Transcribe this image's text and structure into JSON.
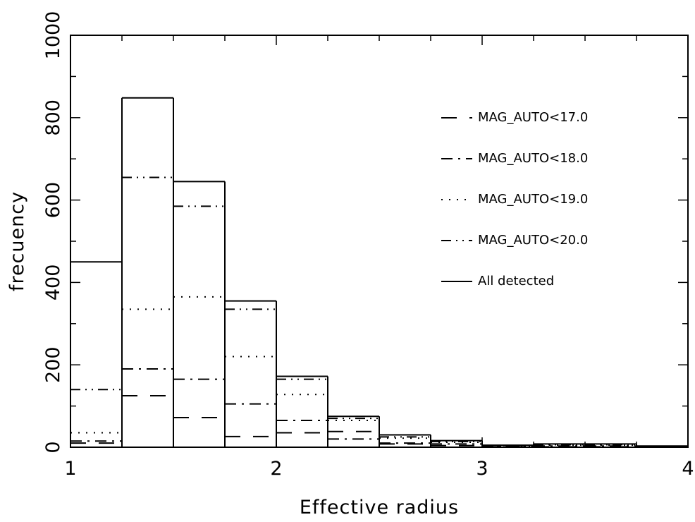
{
  "chart_data": {
    "type": "bar",
    "title": "",
    "xlabel": "Effective radius",
    "ylabel": "frecuency",
    "xlim": [
      1,
      4
    ],
    "ylim": [
      0,
      1000
    ],
    "x_ticks": [
      "1",
      "2",
      "3",
      "4"
    ],
    "y_ticks": [
      "0",
      "200",
      "400",
      "600",
      "800",
      "1000"
    ],
    "bin_edges": [
      1.0,
      1.25,
      1.5,
      1.75,
      2.0,
      2.25,
      2.5,
      2.75,
      3.0,
      3.25,
      3.5,
      3.75,
      4.0
    ],
    "legend_position": "top-right",
    "series": [
      {
        "name": "MAG_AUTO<17.0",
        "style": "long-dash",
        "values": [
          10,
          125,
          72,
          26,
          35,
          38,
          8,
          4,
          1,
          1,
          1,
          0
        ]
      },
      {
        "name": "MAG_AUTO<18.0",
        "style": "dash-dot",
        "values": [
          15,
          190,
          165,
          105,
          65,
          20,
          10,
          8,
          2,
          3,
          3,
          1
        ]
      },
      {
        "name": "MAG_AUTO<19.0",
        "style": "dotted",
        "values": [
          35,
          335,
          365,
          220,
          128,
          65,
          22,
          12,
          3,
          5,
          5,
          2
        ]
      },
      {
        "name": "MAG_AUTO<20.0",
        "style": "dash-dot-dot",
        "values": [
          140,
          655,
          585,
          335,
          165,
          70,
          25,
          14,
          4,
          6,
          6,
          2
        ]
      },
      {
        "name": "All detected",
        "style": "solid",
        "values": [
          450,
          848,
          645,
          355,
          172,
          75,
          30,
          16,
          5,
          8,
          8,
          3
        ]
      }
    ]
  }
}
